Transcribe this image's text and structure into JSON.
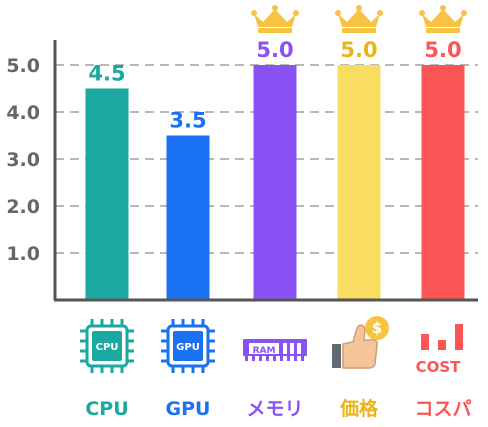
{
  "chart_data": {
    "type": "bar",
    "categories": [
      "CPU",
      "GPU",
      "メモリ",
      "価格",
      "コスパ"
    ],
    "values": [
      4.5,
      3.5,
      5.0,
      5.0,
      5.0
    ],
    "data_labels": [
      "4.5",
      "3.5",
      "5.0",
      "5.0",
      "5.0"
    ],
    "yticks": [
      "1.0",
      "2.0",
      "3.0",
      "4.0",
      "5.0"
    ],
    "ylim": [
      0,
      5.5
    ],
    "grid": true,
    "colors": [
      "#1aa8a0",
      "#1a72f2",
      "#8a52f5",
      "#f9dd60",
      "#fb5655"
    ],
    "label_colors": [
      "#1aa8a0",
      "#1a72f2",
      "#8a52f5",
      "#e8b418",
      "#fb5655"
    ],
    "crown": [
      false,
      false,
      true,
      true,
      true
    ],
    "icons": [
      {
        "name": "cpu-chip-icon",
        "text": "CPU"
      },
      {
        "name": "gpu-chip-icon",
        "text": "GPU"
      },
      {
        "name": "ram-module-icon",
        "text": "RAM"
      },
      {
        "name": "thumbs-up-coin-icon",
        "text": "$"
      },
      {
        "name": "cost-bars-icon",
        "text": "COST"
      }
    ]
  }
}
